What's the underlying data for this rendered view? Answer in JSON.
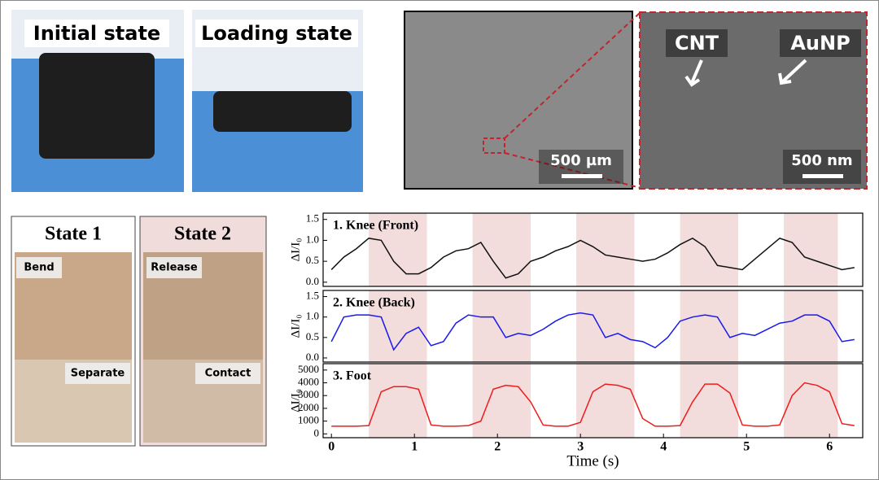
{
  "photos": {
    "initial": "Initial state",
    "loading": "Loading state"
  },
  "sem": {
    "cnt": "CNT",
    "aunp": "AuNP",
    "scale_left": "500 µm",
    "scale_right": "500 nm"
  },
  "states": {
    "state1": "State 1",
    "state2": "State 2",
    "bend": "Bend",
    "release": "Release",
    "separate": "Separate",
    "contact": "Contact"
  },
  "chart_data": [
    {
      "type": "line",
      "title": "1. Knee (Front)",
      "y_label": "ΔI/I₀",
      "color": "#111111",
      "xlim": [
        -0.1,
        6.4
      ],
      "ylim": [
        -0.1,
        1.65
      ],
      "yticks": [
        {
          "value": 0,
          "label": "0.0"
        },
        0.5,
        {
          "value": 1,
          "label": "1.0"
        },
        1.5
      ],
      "shaded_regions": [
        [
          0.45,
          1.15
        ],
        [
          1.7,
          2.4
        ],
        [
          2.95,
          3.65
        ],
        [
          4.2,
          4.9
        ],
        [
          5.45,
          6.1
        ]
      ],
      "x": [
        0,
        0.15,
        0.3,
        0.45,
        0.6,
        0.75,
        0.9,
        1.05,
        1.2,
        1.35,
        1.5,
        1.65,
        1.8,
        1.95,
        2.1,
        2.25,
        2.4,
        2.55,
        2.7,
        2.85,
        3.0,
        3.15,
        3.3,
        3.45,
        3.6,
        3.75,
        3.9,
        4.05,
        4.2,
        4.35,
        4.5,
        4.65,
        4.8,
        4.95,
        5.1,
        5.25,
        5.4,
        5.55,
        5.7,
        5.85,
        6.0,
        6.15,
        6.3
      ],
      "values": [
        0.3,
        0.6,
        0.8,
        1.05,
        1.0,
        0.5,
        0.2,
        0.2,
        0.35,
        0.6,
        0.75,
        0.8,
        0.95,
        0.5,
        0.1,
        0.2,
        0.5,
        0.6,
        0.75,
        0.85,
        1.0,
        0.85,
        0.65,
        0.6,
        0.55,
        0.5,
        0.55,
        0.7,
        0.9,
        1.05,
        0.85,
        0.4,
        0.35,
        0.3,
        0.55,
        0.8,
        1.05,
        0.95,
        0.6,
        0.5,
        0.4,
        0.3,
        0.35
      ]
    },
    {
      "type": "line",
      "title": "2. Knee (Back)",
      "y_label": "ΔI/I₀",
      "color": "#1a1aee",
      "xlim": [
        -0.1,
        6.4
      ],
      "ylim": [
        -0.1,
        1.65
      ],
      "yticks": [
        {
          "value": 0,
          "label": "0.0"
        },
        0.5,
        {
          "value": 1,
          "label": "1.0"
        },
        1.5
      ],
      "shaded_regions": [
        [
          0.45,
          1.15
        ],
        [
          1.7,
          2.4
        ],
        [
          2.95,
          3.65
        ],
        [
          4.2,
          4.9
        ],
        [
          5.45,
          6.1
        ]
      ],
      "x": [
        0,
        0.15,
        0.3,
        0.45,
        0.6,
        0.75,
        0.9,
        1.05,
        1.2,
        1.35,
        1.5,
        1.65,
        1.8,
        1.95,
        2.1,
        2.25,
        2.4,
        2.55,
        2.7,
        2.85,
        3.0,
        3.15,
        3.3,
        3.45,
        3.6,
        3.75,
        3.9,
        4.05,
        4.2,
        4.35,
        4.5,
        4.65,
        4.8,
        4.95,
        5.1,
        5.25,
        5.4,
        5.55,
        5.7,
        5.85,
        6.0,
        6.15,
        6.3
      ],
      "values": [
        0.4,
        1.0,
        1.05,
        1.05,
        1.0,
        0.2,
        0.6,
        0.75,
        0.3,
        0.4,
        0.85,
        1.05,
        1.0,
        1.0,
        0.5,
        0.6,
        0.55,
        0.7,
        0.9,
        1.05,
        1.1,
        1.05,
        0.5,
        0.6,
        0.45,
        0.4,
        0.25,
        0.5,
        0.9,
        1.0,
        1.05,
        1.0,
        0.5,
        0.6,
        0.55,
        0.7,
        0.85,
        0.9,
        1.05,
        1.05,
        0.9,
        0.4,
        0.45
      ]
    },
    {
      "type": "line",
      "title": "3. Foot",
      "y_label": "ΔI/I₀",
      "x_label": "Time (s)",
      "color": "#ee1c1c",
      "xlim": [
        -0.1,
        6.4
      ],
      "ylim": [
        -300,
        5500
      ],
      "xticks": [
        0,
        1,
        2,
        3,
        4,
        5,
        6
      ],
      "yticks": [
        0,
        1000,
        2000,
        3000,
        4000,
        5000
      ],
      "shaded_regions": [
        [
          0.45,
          1.15
        ],
        [
          1.7,
          2.4
        ],
        [
          2.95,
          3.65
        ],
        [
          4.2,
          4.9
        ],
        [
          5.45,
          6.1
        ]
      ],
      "x": [
        0,
        0.15,
        0.3,
        0.45,
        0.6,
        0.75,
        0.9,
        1.05,
        1.2,
        1.35,
        1.5,
        1.65,
        1.8,
        1.95,
        2.1,
        2.25,
        2.4,
        2.55,
        2.7,
        2.85,
        3.0,
        3.15,
        3.3,
        3.45,
        3.6,
        3.75,
        3.9,
        4.05,
        4.2,
        4.35,
        4.5,
        4.65,
        4.8,
        4.95,
        5.1,
        5.25,
        5.4,
        5.55,
        5.7,
        5.85,
        6.0,
        6.15,
        6.3
      ],
      "values": [
        600,
        600,
        600,
        650,
        3300,
        3700,
        3700,
        3500,
        700,
        600,
        600,
        650,
        1000,
        3500,
        3800,
        3700,
        2500,
        700,
        600,
        600,
        900,
        3300,
        3900,
        3800,
        3500,
        1200,
        600,
        600,
        650,
        2500,
        3900,
        3900,
        3200,
        700,
        600,
        600,
        700,
        3000,
        4000,
        3800,
        3300,
        800,
        650
      ]
    }
  ]
}
